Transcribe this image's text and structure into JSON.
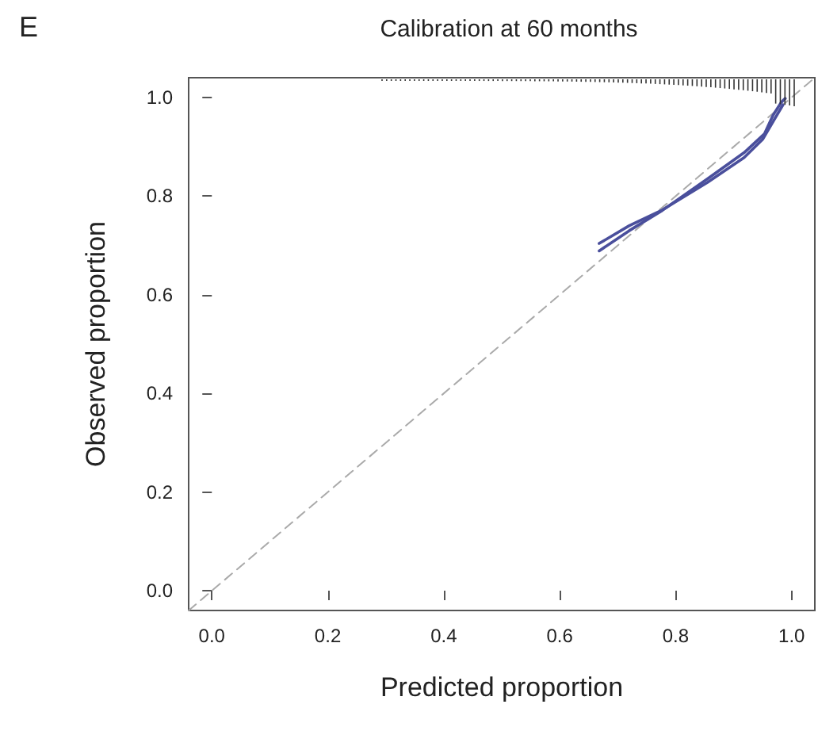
{
  "chart_data": {
    "type": "line",
    "title": "Calibration at 60 months",
    "xlabel": "Predicted proportion",
    "ylabel": "Observed proportion",
    "annotations": [
      "E"
    ],
    "xlim": [
      -0.04,
      1.04
    ],
    "ylim": [
      -0.04,
      1.04
    ],
    "xticks": [
      {
        "value": 0,
        "label": "0.0"
      },
      0.2,
      0.4,
      0.6,
      0.8,
      {
        "value": 1,
        "label": "1.0"
      }
    ],
    "yticks": [
      {
        "value": 0,
        "label": "0.0"
      },
      0.2,
      0.4,
      0.6,
      0.8,
      {
        "value": 1,
        "label": "1.0"
      }
    ],
    "grid": false,
    "marker": "none",
    "series": [
      {
        "type": "line",
        "color": "#aaaaaa",
        "line_style": "dashed",
        "x": [
          -0.04,
          1.04
        ],
        "values": [
          -0.04,
          1.04
        ]
      },
      {
        "color": "#4a4f9c",
        "line_style": "solid",
        "x": [
          0.668,
          0.72,
          0.777,
          0.855,
          0.918,
          0.953,
          0.968,
          0.982,
          0.989
        ],
        "values": [
          0.689,
          0.73,
          0.771,
          0.835,
          0.888,
          0.926,
          0.964,
          0.99,
          0.998
        ]
      },
      {
        "color": "#4a4f9c",
        "line_style": "solid",
        "x": [
          0.668,
          0.72,
          0.777,
          0.855,
          0.918,
          0.95,
          0.97,
          0.985
        ],
        "values": [
          0.704,
          0.74,
          0.772,
          0.828,
          0.878,
          0.915,
          0.955,
          0.985
        ]
      }
    ]
  }
}
